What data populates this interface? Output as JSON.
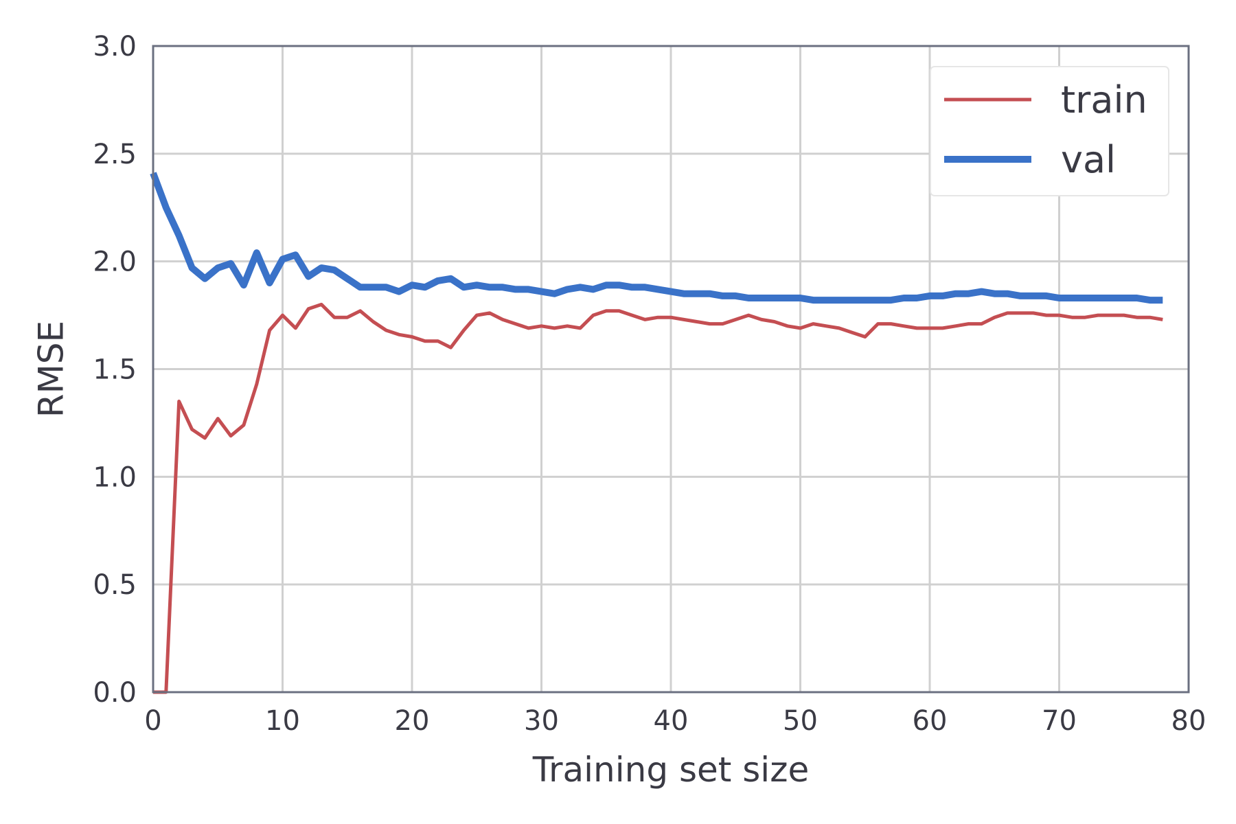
{
  "chart_data": {
    "type": "line",
    "xlabel": "Training set size",
    "ylabel": "RMSE",
    "xlim": [
      0,
      80
    ],
    "ylim": [
      0,
      3
    ],
    "xticks": [
      "0",
      "10",
      "20",
      "30",
      "40",
      "50",
      "60",
      "70",
      "80"
    ],
    "yticks": [
      "0.0",
      "0.5",
      "1.0",
      "1.5",
      "2.0",
      "2.5",
      "3.0"
    ],
    "grid": true,
    "legend": "top-right",
    "series": [
      {
        "name": "train",
        "color": "#c44e52",
        "x": [
          0,
          1,
          2,
          3,
          4,
          5,
          6,
          7,
          8,
          9,
          10,
          11,
          12,
          13,
          14,
          15,
          16,
          17,
          18,
          19,
          20,
          21,
          22,
          23,
          24,
          25,
          26,
          27,
          28,
          29,
          30,
          31,
          32,
          33,
          34,
          35,
          36,
          37,
          38,
          39,
          40,
          41,
          42,
          43,
          44,
          45,
          46,
          47,
          48,
          49,
          50,
          51,
          52,
          53,
          54,
          55,
          56,
          57,
          58,
          59,
          60,
          61,
          62,
          63,
          64,
          65,
          66,
          67,
          68,
          69,
          70,
          71,
          72,
          73,
          74,
          75,
          76,
          77,
          78
        ],
        "values": [
          0.0,
          0.0,
          1.35,
          1.22,
          1.18,
          1.27,
          1.19,
          1.24,
          1.43,
          1.68,
          1.75,
          1.69,
          1.78,
          1.8,
          1.74,
          1.74,
          1.77,
          1.72,
          1.68,
          1.66,
          1.65,
          1.63,
          1.63,
          1.6,
          1.68,
          1.75,
          1.76,
          1.73,
          1.71,
          1.69,
          1.7,
          1.69,
          1.7,
          1.69,
          1.75,
          1.77,
          1.77,
          1.75,
          1.73,
          1.74,
          1.74,
          1.73,
          1.72,
          1.71,
          1.71,
          1.73,
          1.75,
          1.73,
          1.72,
          1.7,
          1.69,
          1.71,
          1.7,
          1.69,
          1.67,
          1.65,
          1.71,
          1.71,
          1.7,
          1.69,
          1.69,
          1.69,
          1.7,
          1.71,
          1.71,
          1.74,
          1.76,
          1.76,
          1.76,
          1.75,
          1.75,
          1.74,
          1.74,
          1.75,
          1.75,
          1.75,
          1.74,
          1.74,
          1.73
        ]
      },
      {
        "name": "val",
        "color": "#3a72c8",
        "x": [
          0,
          1,
          2,
          3,
          4,
          5,
          6,
          7,
          8,
          9,
          10,
          11,
          12,
          13,
          14,
          15,
          16,
          17,
          18,
          19,
          20,
          21,
          22,
          23,
          24,
          25,
          26,
          27,
          28,
          29,
          30,
          31,
          32,
          33,
          34,
          35,
          36,
          37,
          38,
          39,
          40,
          41,
          42,
          43,
          44,
          45,
          46,
          47,
          48,
          49,
          50,
          51,
          52,
          53,
          54,
          55,
          56,
          57,
          58,
          59,
          60,
          61,
          62,
          63,
          64,
          65,
          66,
          67,
          68,
          69,
          70,
          71,
          72,
          73,
          74,
          75,
          76,
          77,
          78
        ],
        "values": [
          2.41,
          2.25,
          2.12,
          1.97,
          1.92,
          1.97,
          1.99,
          1.89,
          2.04,
          1.9,
          2.01,
          2.03,
          1.93,
          1.97,
          1.96,
          1.92,
          1.88,
          1.88,
          1.88,
          1.86,
          1.89,
          1.88,
          1.91,
          1.92,
          1.88,
          1.89,
          1.88,
          1.88,
          1.87,
          1.87,
          1.86,
          1.85,
          1.87,
          1.88,
          1.87,
          1.89,
          1.89,
          1.88,
          1.88,
          1.87,
          1.86,
          1.85,
          1.85,
          1.85,
          1.84,
          1.84,
          1.83,
          1.83,
          1.83,
          1.83,
          1.83,
          1.82,
          1.82,
          1.82,
          1.82,
          1.82,
          1.82,
          1.82,
          1.83,
          1.83,
          1.84,
          1.84,
          1.85,
          1.85,
          1.86,
          1.85,
          1.85,
          1.84,
          1.84,
          1.84,
          1.83,
          1.83,
          1.83,
          1.83,
          1.83,
          1.83,
          1.83,
          1.82,
          1.82
        ]
      }
    ]
  }
}
